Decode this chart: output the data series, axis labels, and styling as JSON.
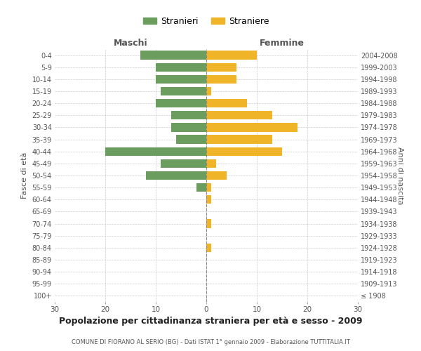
{
  "age_groups": [
    "100+",
    "95-99",
    "90-94",
    "85-89",
    "80-84",
    "75-79",
    "70-74",
    "65-69",
    "60-64",
    "55-59",
    "50-54",
    "45-49",
    "40-44",
    "35-39",
    "30-34",
    "25-29",
    "20-24",
    "15-19",
    "10-14",
    "5-9",
    "0-4"
  ],
  "birth_years": [
    "≤ 1908",
    "1909-1913",
    "1914-1918",
    "1919-1923",
    "1924-1928",
    "1929-1933",
    "1934-1938",
    "1939-1943",
    "1944-1948",
    "1949-1953",
    "1954-1958",
    "1959-1963",
    "1964-1968",
    "1969-1973",
    "1974-1978",
    "1979-1983",
    "1984-1988",
    "1989-1993",
    "1994-1998",
    "1999-2003",
    "2004-2008"
  ],
  "males": [
    0,
    0,
    0,
    0,
    0,
    0,
    0,
    0,
    0,
    2,
    12,
    9,
    20,
    6,
    7,
    7,
    10,
    9,
    10,
    10,
    13
  ],
  "females": [
    0,
    0,
    0,
    0,
    1,
    0,
    1,
    0,
    1,
    1,
    4,
    2,
    15,
    13,
    18,
    13,
    8,
    1,
    6,
    6,
    10
  ],
  "male_color": "#6b9e5e",
  "female_color": "#f0b429",
  "grid_color": "#cccccc",
  "center_line_color": "#888888",
  "title": "Popolazione per cittadinanza straniera per età e sesso - 2009",
  "subtitle": "COMUNE DI FIORANO AL SERIO (BG) - Dati ISTAT 1° gennaio 2009 - Elaborazione TUTTITALIA.IT",
  "ylabel_left": "Fasce di età",
  "ylabel_right": "Anni di nascita",
  "header_left": "Maschi",
  "header_right": "Femmine",
  "legend_male": "Stranieri",
  "legend_female": "Straniere",
  "xlim": 30,
  "background_color": "#ffffff",
  "text_color": "#555555",
  "title_color": "#222222"
}
